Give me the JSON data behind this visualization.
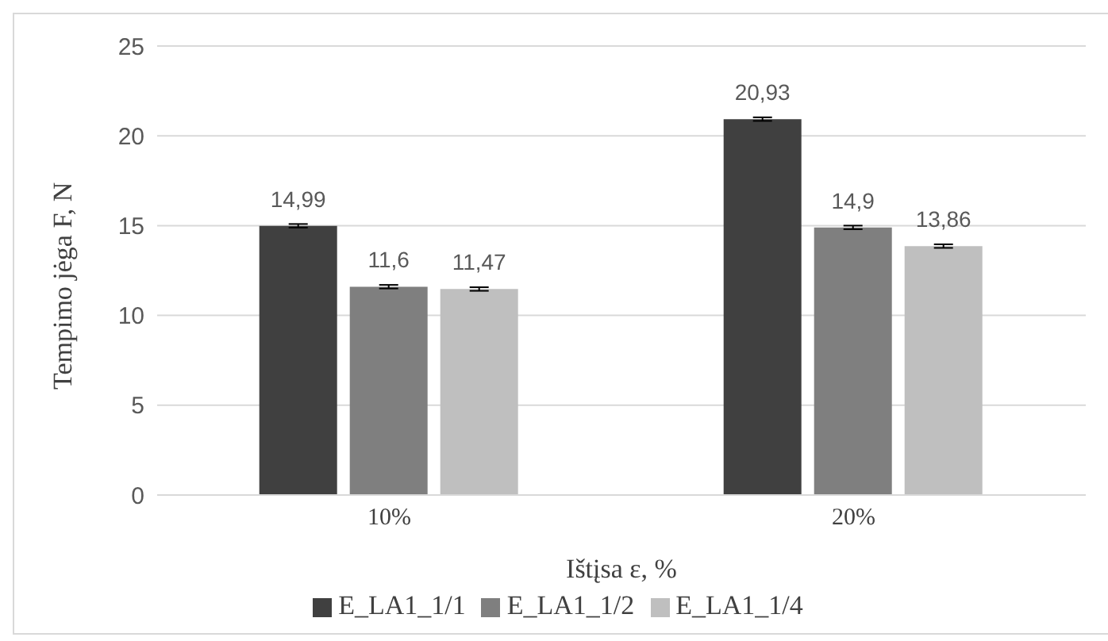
{
  "chart_data": {
    "type": "bar",
    "xlabel": "Ištįsa ε, %",
    "ylabel": "Tempimo jėga F, N",
    "categories": [
      "10%",
      "20%"
    ],
    "series": [
      {
        "name": "E_LA1_1/1",
        "color": "#404040",
        "values": [
          14.99,
          20.93
        ],
        "value_labels": [
          "14,99",
          "20,93"
        ],
        "errors": [
          0.1,
          0.1
        ]
      },
      {
        "name": "E_LA1_1/2",
        "color": "#7f7f7f",
        "values": [
          11.6,
          14.9
        ],
        "value_labels": [
          "11,6",
          "14,9"
        ],
        "errors": [
          0.1,
          0.1
        ]
      },
      {
        "name": "E_LA1_1/4",
        "color": "#bfbfbf",
        "values": [
          11.47,
          13.86
        ],
        "value_labels": [
          "11,47",
          "13,86"
        ],
        "errors": [
          0.1,
          0.1
        ]
      }
    ],
    "ylim": [
      0,
      25
    ],
    "yticks": [
      0,
      5,
      10,
      15,
      20,
      25
    ],
    "grid": "y",
    "legend": "bottom"
  }
}
